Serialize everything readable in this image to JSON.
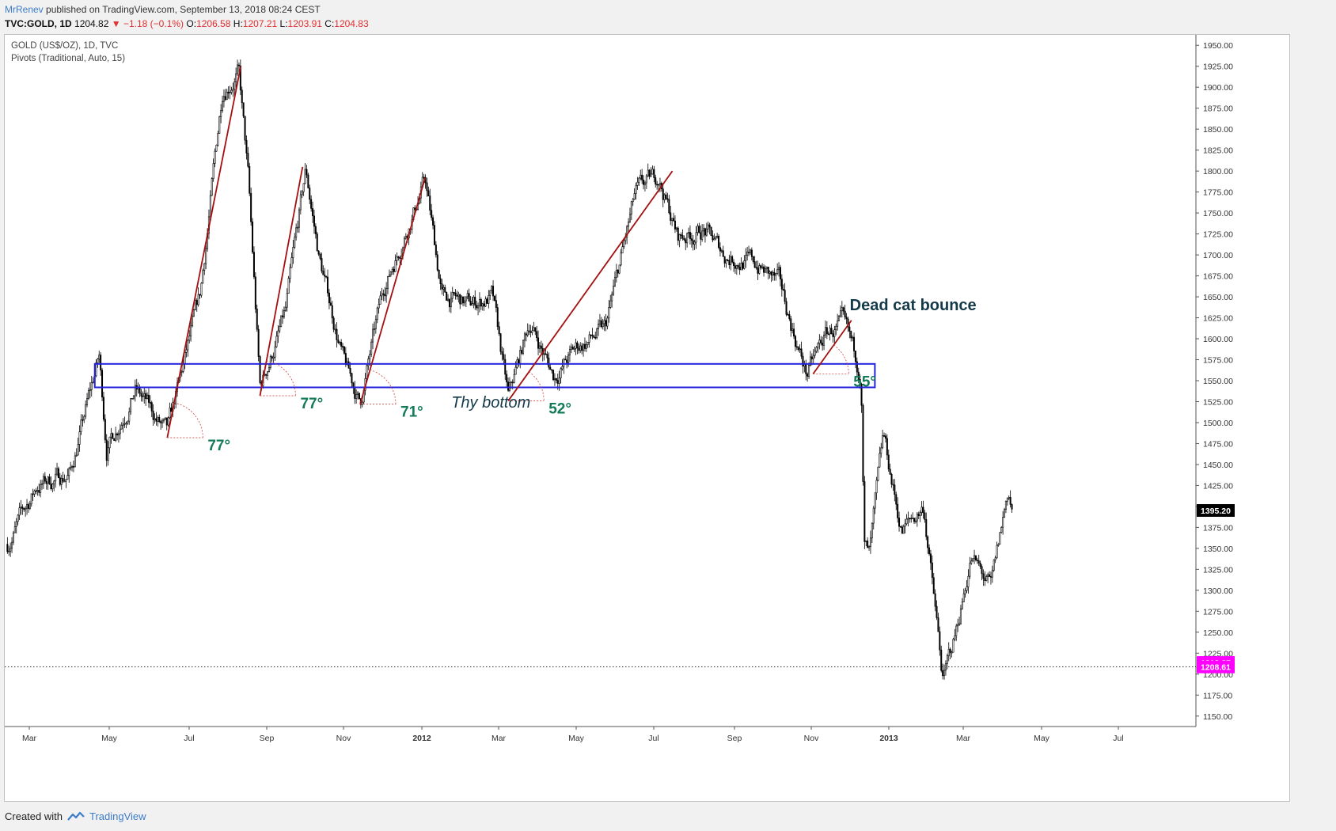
{
  "header": {
    "author": "MrRenev",
    "published": "published on TradingView.com, September 13, 2018 08:24 CEST"
  },
  "quote": {
    "symbol": "TVC:GOLD, 1D",
    "last": "1204.82",
    "change": "−1.18 (−0.1%)",
    "open_label": "O:",
    "open": "1206.58",
    "high_label": "H:",
    "high": "1207.21",
    "low_label": "L:",
    "low": "1203.91",
    "close_label": "C:",
    "close": "1204.83"
  },
  "legend": {
    "title": "GOLD (US$/OZ), 1D, TVC",
    "indicator": "Pivots (Traditional, Auto, 15)"
  },
  "footer": {
    "created_with": "Created with",
    "brand": "TradingView"
  },
  "colors": {
    "candle": "#000000",
    "trendline": "#a31010",
    "zone": "#2222dd",
    "angle_text": "#137a5a",
    "annotation_text": "#143a4a",
    "price_tag_last": "#000000",
    "price_tag_pivot": "#ff00ff"
  },
  "chart_data": {
    "type": "candlestick",
    "title": "GOLD (US$/OZ), 1D, TVC",
    "ylim": [
      1137.5,
      1962.5
    ],
    "y_ticks": [
      1150,
      1175,
      1200,
      1225,
      1250,
      1275,
      1300,
      1325,
      1350,
      1375,
      1400,
      1425,
      1450,
      1475,
      1500,
      1525,
      1550,
      1575,
      1600,
      1625,
      1650,
      1675,
      1700,
      1725,
      1750,
      1775,
      1800,
      1825,
      1850,
      1875,
      1900,
      1925,
      1950
    ],
    "x_ticks": [
      {
        "label": "Mar",
        "bold": false
      },
      {
        "label": "May",
        "bold": false
      },
      {
        "label": "Jul",
        "bold": false
      },
      {
        "label": "Sep",
        "bold": false
      },
      {
        "label": "Nov",
        "bold": false
      },
      {
        "label": "2012",
        "bold": true
      },
      {
        "label": "Mar",
        "bold": false
      },
      {
        "label": "May",
        "bold": false
      },
      {
        "label": "Jul",
        "bold": false
      },
      {
        "label": "Sep",
        "bold": false
      },
      {
        "label": "Nov",
        "bold": false
      },
      {
        "label": "2013",
        "bold": true
      },
      {
        "label": "Mar",
        "bold": false
      },
      {
        "label": "May",
        "bold": false
      },
      {
        "label": "Jul",
        "bold": false
      }
    ],
    "price_path": [
      [
        "2011-02-01",
        1355
      ],
      [
        "2011-03-01",
        1425
      ],
      [
        "2011-04-01",
        1440
      ],
      [
        "2011-04-28",
        1578
      ],
      [
        "2011-05-05",
        1470
      ],
      [
        "2011-06-01",
        1540
      ],
      [
        "2011-07-01",
        1485
      ],
      [
        "2011-08-01",
        1650
      ],
      [
        "2011-08-22",
        1900
      ],
      [
        "2011-09-06",
        1920
      ],
      [
        "2011-09-15",
        1790
      ],
      [
        "2011-09-26",
        1540
      ],
      [
        "2011-10-20",
        1630
      ],
      [
        "2011-11-08",
        1800
      ],
      [
        "2011-11-20",
        1700
      ],
      [
        "2011-12-14",
        1570
      ],
      [
        "2011-12-29",
        1522
      ],
      [
        "2012-01-20",
        1660
      ],
      [
        "2012-02-28",
        1790
      ],
      [
        "2012-03-15",
        1650
      ],
      [
        "2012-04-10",
        1640
      ],
      [
        "2012-05-01",
        1650
      ],
      [
        "2012-05-16",
        1527
      ],
      [
        "2012-06-05",
        1620
      ],
      [
        "2012-06-28",
        1555
      ],
      [
        "2012-07-20",
        1590
      ],
      [
        "2012-08-15",
        1610
      ],
      [
        "2012-09-12",
        1770
      ],
      [
        "2012-10-04",
        1795
      ],
      [
        "2012-10-22",
        1720
      ],
      [
        "2012-11-15",
        1730
      ],
      [
        "2012-12-05",
        1700
      ],
      [
        "2013-01-02",
        1690
      ],
      [
        "2013-01-25",
        1665
      ],
      [
        "2013-02-20",
        1557
      ],
      [
        "2013-03-10",
        1605
      ],
      [
        "2013-03-25",
        1615
      ],
      [
        "2013-04-12",
        1560
      ],
      [
        "2013-04-15",
        1355
      ],
      [
        "2013-04-20",
        1340
      ],
      [
        "2013-05-03",
        1480
      ],
      [
        "2013-05-20",
        1370
      ],
      [
        "2013-06-10",
        1400
      ],
      [
        "2013-06-28",
        1190
      ],
      [
        "2013-07-10",
        1250
      ],
      [
        "2013-07-24",
        1340
      ],
      [
        "2013-08-12",
        1300
      ],
      [
        "2013-08-28",
        1420
      ],
      [
        "2013-09-01",
        1395
      ]
    ],
    "last_price": 1395.2,
    "pivot_labels": [
      1213.87,
      1208.61
    ],
    "dotted_line": 1208.61,
    "zone": {
      "x0": "2011-04-24",
      "x1": "2013-04-25",
      "y0": 1542,
      "y1": 1570
    },
    "trendlines": [
      {
        "from": [
          "2011-07-01",
          1482
        ],
        "to": [
          "2011-09-08",
          1925
        ],
        "angle": "77°"
      },
      {
        "from": [
          "2011-09-26",
          1532
        ],
        "to": [
          "2011-11-05",
          1805
        ],
        "angle": "77°"
      },
      {
        "from": [
          "2011-12-29",
          1522
        ],
        "to": [
          "2012-02-28",
          1792
        ],
        "angle": "71°"
      },
      {
        "from": [
          "2012-05-16",
          1526
        ],
        "to": [
          "2012-10-17",
          1800
        ],
        "angle": "52°"
      },
      {
        "from": [
          "2013-02-26",
          1558
        ],
        "to": [
          "2013-04-03",
          1622
        ],
        "angle": "55°"
      }
    ],
    "annotations": [
      {
        "text": "Thy bottom",
        "date": "2012-05-16"
      },
      {
        "text": "Dead cat bounce",
        "date": "2013-03-25"
      }
    ]
  }
}
